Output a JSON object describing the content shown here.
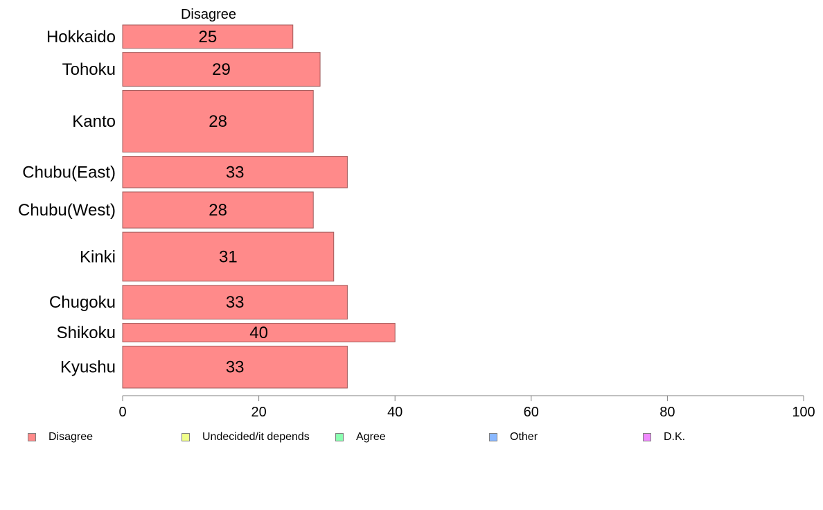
{
  "chart_data": {
    "type": "bar",
    "orientation": "horizontal",
    "title": "Disagree",
    "categories": [
      "Hokkaido",
      "Tohoku",
      "Kanto",
      "Chubu(East)",
      "Chubu(West)",
      "Kinki",
      "Chugoku",
      "Shikoku",
      "Kyushu"
    ],
    "series": [
      {
        "name": "Disagree",
        "values": [
          25,
          29,
          28,
          33,
          28,
          31,
          33,
          40,
          33
        ]
      }
    ],
    "relative_bar_widths": [
      1.0,
      1.45,
      2.65,
      1.35,
      1.55,
      2.1,
      1.45,
      0.8,
      1.8
    ],
    "xlim": [
      0,
      100
    ],
    "xticks": [
      "0",
      "20",
      "40",
      "60",
      "80",
      "100"
    ],
    "grid": false,
    "legend_position": "bottom",
    "legend": [
      {
        "label": "Disagree",
        "color": "#ff8a8a"
      },
      {
        "label": "Undecided/it depends",
        "color": "#f0ff8a"
      },
      {
        "label": "Agree",
        "color": "#8affb0"
      },
      {
        "label": "Other",
        "color": "#8ab8ff"
      },
      {
        "label": "D.K.",
        "color": "#f08aff"
      }
    ]
  }
}
